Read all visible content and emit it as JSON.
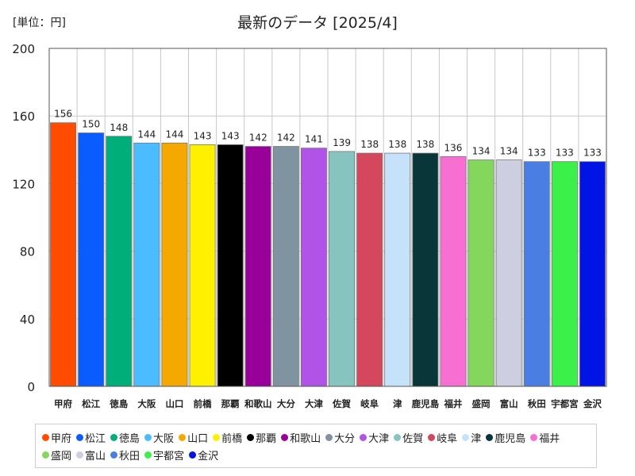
{
  "unit_label": "[単位：円]",
  "chart_data": {
    "type": "bar",
    "title": "最新のデータ [2025/4]",
    "xlabel": "",
    "ylabel": "",
    "ylim": [
      0,
      200
    ],
    "yticks": [
      0,
      40,
      80,
      120,
      160,
      200
    ],
    "grid": true,
    "legend_position": "bottom",
    "categories": [
      "甲府",
      "松江",
      "徳島",
      "大阪",
      "山口",
      "前橋",
      "那覇",
      "和歌山",
      "大分",
      "大津",
      "佐賀",
      "岐阜",
      "津",
      "鹿児島",
      "福井",
      "盛岡",
      "富山",
      "秋田",
      "宇都宮",
      "金沢"
    ],
    "values": [
      156,
      150,
      148,
      144,
      144,
      143,
      143,
      142,
      142,
      141,
      139,
      138,
      138,
      138,
      136,
      134,
      134,
      133,
      133,
      133
    ],
    "colors": [
      "#ff4c00",
      "#0a5cff",
      "#00ae7a",
      "#4bbcff",
      "#f5a800",
      "#fff000",
      "#000000",
      "#990099",
      "#8093a0",
      "#b053e6",
      "#88c4bf",
      "#d4475c",
      "#c6e2fa",
      "#083639",
      "#f76fd0",
      "#84d65c",
      "#cdcee0",
      "#4a7ee3",
      "#3cf04a",
      "#0014e6"
    ]
  }
}
